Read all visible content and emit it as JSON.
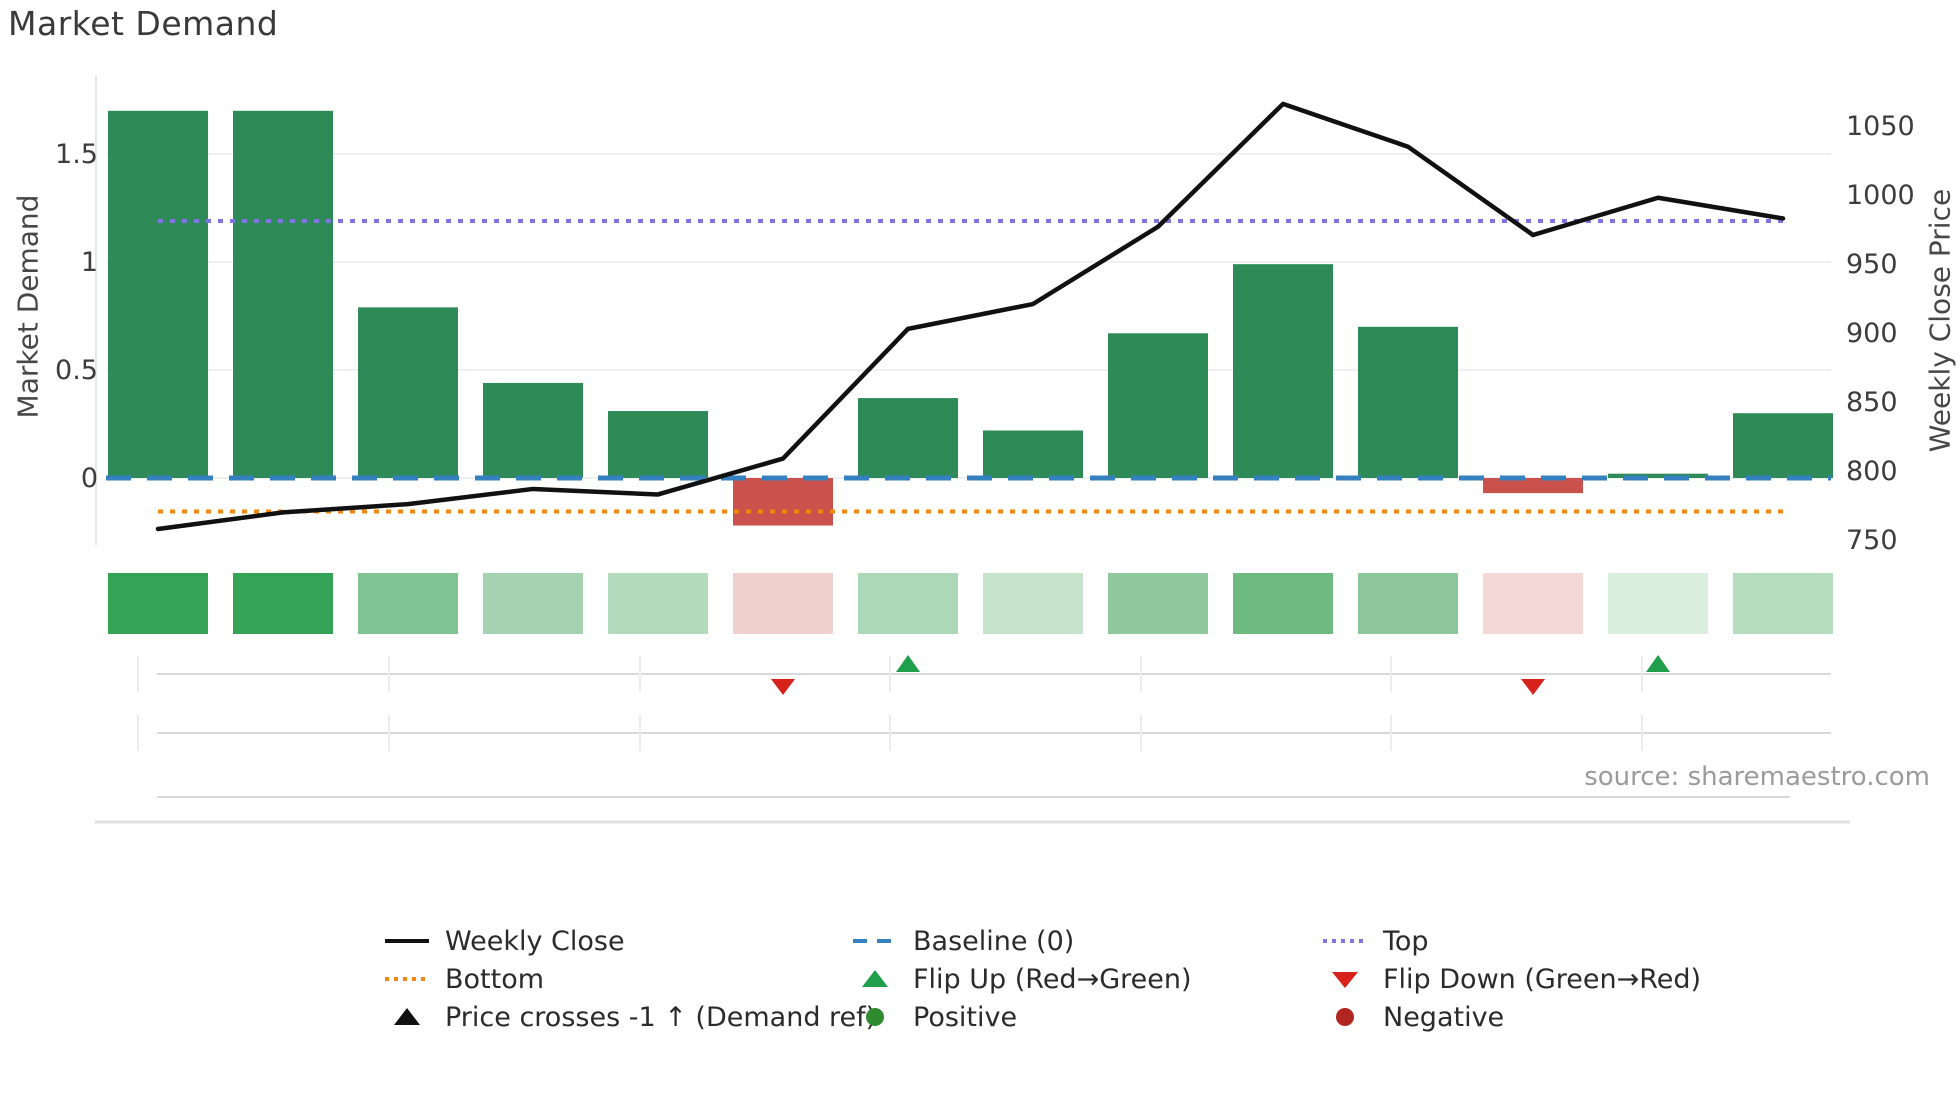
{
  "title": "Market Demand",
  "source": "source: sharemaestro.com",
  "axes": {
    "left_label": "Market Demand",
    "right_label": "Weekly Close Price",
    "left_ticks": [
      {
        "label": "0",
        "value": 0
      },
      {
        "label": "0.5",
        "value": 0.5
      },
      {
        "label": "1",
        "value": 1
      },
      {
        "label": "1.5",
        "value": 1.5
      }
    ],
    "right_ticks": [
      {
        "label": "750",
        "value": 750
      },
      {
        "label": "800",
        "value": 800
      },
      {
        "label": "850",
        "value": 850
      },
      {
        "label": "900",
        "value": 900
      },
      {
        "label": "950",
        "value": 950
      },
      {
        "label": "1000",
        "value": 1000
      },
      {
        "label": "1050",
        "value": 1050
      }
    ]
  },
  "chart_data": {
    "type": "combo-bar-line",
    "title": "Market Demand",
    "xlabel": "",
    "ylabel_left": "Market Demand",
    "ylabel_right": "Weekly Close Price",
    "x": [
      1,
      2,
      3,
      4,
      5,
      6,
      7,
      8,
      9,
      10,
      11,
      12,
      13,
      14
    ],
    "ylim_left": [
      -0.45,
      1.85
    ],
    "ylim_right": [
      720,
      1085
    ],
    "grid": true,
    "legend_position": "bottom",
    "series": [
      {
        "name": "Market Demand",
        "type": "bar",
        "axis": "left",
        "values": [
          1.7,
          1.7,
          0.79,
          0.44,
          0.31,
          -0.22,
          0.37,
          0.22,
          0.67,
          0.99,
          0.7,
          -0.07,
          0.02,
          0.3
        ]
      },
      {
        "name": "Weekly Close",
        "type": "line",
        "axis": "right",
        "values": [
          758,
          770,
          776,
          787,
          783,
          809,
          903,
          921,
          977,
          1066,
          1035,
          971,
          998,
          983
        ]
      }
    ],
    "reference_lines": [
      {
        "name": "Baseline (0)",
        "axis": "left",
        "value": 0,
        "style": "dashed",
        "color": "#3580bf"
      },
      {
        "name": "Top",
        "axis": "left",
        "value": 1.19,
        "style": "dotted",
        "color": "#7e75e1"
      },
      {
        "name": "Bottom",
        "axis": "left",
        "value": -0.155,
        "style": "dotted",
        "color": "#ef8811"
      }
    ],
    "heatmap_tiles": [
      {
        "week": 1,
        "color": "#34a355"
      },
      {
        "week": 2,
        "color": "#34a355"
      },
      {
        "week": 3,
        "color": "#82c394"
      },
      {
        "week": 4,
        "color": "#a5d2b0"
      },
      {
        "week": 5,
        "color": "#b4dabd"
      },
      {
        "week": 6,
        "color": "#efd0cd"
      },
      {
        "week": 7,
        "color": "#add8b8"
      },
      {
        "week": 8,
        "color": "#c6e4cc"
      },
      {
        "week": 9,
        "color": "#90c99e"
      },
      {
        "week": 10,
        "color": "#6dbb80"
      },
      {
        "week": 11,
        "color": "#8cc69a"
      },
      {
        "week": 12,
        "color": "#f3d8d5"
      },
      {
        "week": 13,
        "color": "#daeede"
      },
      {
        "week": 14,
        "color": "#b7ddc1"
      }
    ],
    "flip_markers": [
      {
        "week": 6,
        "type": "down"
      },
      {
        "week": 7,
        "type": "up"
      },
      {
        "week": 12,
        "type": "down"
      },
      {
        "week": 13,
        "type": "up"
      }
    ]
  },
  "legend": {
    "columns": [
      {
        "items": [
          {
            "label": "Weekly Close",
            "swatch": "line",
            "color": "#111111"
          },
          {
            "label": "Bottom",
            "swatch": "dotted-line",
            "color": "#ef8811"
          },
          {
            "label": "Price crosses -1 ↑ (Demand ref)",
            "swatch": "triangle-up",
            "color": "#111111"
          }
        ]
      },
      {
        "items": [
          {
            "label": "Baseline (0)",
            "swatch": "dashed-line",
            "color": "#3580bf"
          },
          {
            "label": "Flip Up (Red→Green)",
            "swatch": "triangle-up",
            "color": "#1f9e4b"
          },
          {
            "label": "Positive",
            "swatch": "circle",
            "color": "#2e8b30"
          }
        ]
      },
      {
        "items": [
          {
            "label": "Top",
            "swatch": "dotted-line",
            "color": "#7e75e1"
          },
          {
            "label": "Flip Down (Green→Red)",
            "swatch": "triangle-down",
            "color": "#d7221c"
          },
          {
            "label": "Negative",
            "swatch": "circle",
            "color": "#b02722"
          }
        ]
      }
    ]
  },
  "colors": {
    "bar_positive": "#2e8b57",
    "bar_negative": "#cb514d",
    "price_line": "#111111",
    "grid": "#edeff3",
    "spine": "#e6e6e6",
    "tick_text": "#3d3d3d",
    "lane_line": "#d8d8d8",
    "lane_tick": "#ececec",
    "flip_up": "#1f9e4b",
    "flip_down": "#d7221c"
  }
}
